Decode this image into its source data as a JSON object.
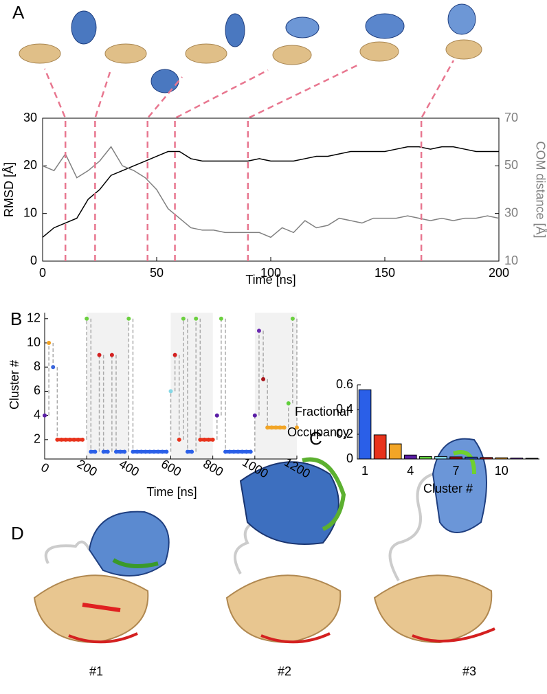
{
  "chart_data": [
    {
      "type": "line",
      "panel_label": "A",
      "xlabel": "Time [ns]",
      "ylabel": "RMSD [Å]",
      "y2label": "COM distance [Å]",
      "xlim": [
        0,
        200
      ],
      "xticks": [
        0,
        50,
        100,
        150,
        200
      ],
      "ylim": [
        0,
        30
      ],
      "yticks": [
        0,
        10,
        20,
        30
      ],
      "y2lim": [
        10,
        70
      ],
      "y2ticks": [
        10,
        30,
        50,
        70
      ],
      "x": [
        0,
        5,
        10,
        15,
        20,
        25,
        30,
        35,
        40,
        45,
        50,
        55,
        60,
        65,
        70,
        75,
        80,
        85,
        90,
        95,
        100,
        105,
        110,
        115,
        120,
        125,
        130,
        135,
        140,
        145,
        150,
        155,
        160,
        165,
        170,
        175,
        180,
        185,
        190,
        195,
        200
      ],
      "series": [
        {
          "color": "#000000",
          "values": [
            5,
            7,
            8,
            9,
            13,
            15,
            18,
            19,
            20,
            21,
            22,
            23,
            23,
            21.5,
            21,
            21,
            21,
            21,
            21,
            21.5,
            21,
            21,
            21,
            21.5,
            22,
            22,
            22.5,
            23,
            23,
            23,
            23,
            23.5,
            24,
            24,
            23.5,
            24,
            24,
            23.5,
            23,
            23,
            23
          ]
        },
        {
          "color": "#808080",
          "axis": "y2",
          "values": [
            50,
            48,
            55,
            45,
            48,
            52,
            58,
            50,
            48,
            45,
            40,
            32,
            28,
            24,
            23,
            23,
            22,
            22,
            22,
            22,
            20,
            24,
            22,
            27,
            24,
            25,
            28,
            27,
            26,
            28,
            28,
            28,
            29,
            28,
            27,
            28,
            27,
            28,
            28,
            29,
            28
          ]
        }
      ],
      "markers": [
        10,
        23,
        46,
        58,
        90,
        166
      ],
      "marker_color": "#e8768f"
    },
    {
      "type": "scatter",
      "panel_label": "B",
      "xlabel": "Time [ns]",
      "ylabel": "Cluster #",
      "xlim": [
        0,
        1200
      ],
      "xticks": [
        0,
        200,
        400,
        600,
        800,
        1000,
        1200
      ],
      "ylim": [
        0.4,
        12.5
      ],
      "yticks": [
        2,
        4,
        6,
        8,
        10,
        12
      ],
      "shaded": [
        [
          200,
          400
        ],
        [
          600,
          800
        ],
        [
          1000,
          1200
        ]
      ],
      "cluster_colors": [
        "#2a5fe8",
        "#e8331c",
        "#f2a526",
        "#5b1ea6",
        "#5fcf3a",
        "#86d8e6",
        "#a8161c",
        "#3a66dd",
        "#d42020",
        "#f0a020",
        "#6a28b0",
        "#6cd040"
      ],
      "x": [
        0,
        20,
        40,
        60,
        80,
        100,
        120,
        140,
        160,
        180,
        200,
        220,
        240,
        260,
        280,
        300,
        320,
        340,
        360,
        380,
        400,
        420,
        440,
        460,
        480,
        500,
        520,
        540,
        560,
        580,
        600,
        620,
        640,
        660,
        680,
        700,
        720,
        740,
        760,
        780,
        800,
        820,
        840,
        860,
        880,
        900,
        920,
        940,
        960,
        980,
        1000,
        1020,
        1040,
        1060,
        1080,
        1100,
        1120,
        1140,
        1160,
        1180,
        1200
      ],
      "values": [
        4,
        10,
        8,
        2,
        2,
        2,
        2,
        2,
        2,
        2,
        12,
        1,
        1,
        9,
        1,
        1,
        9,
        1,
        1,
        1,
        12,
        1,
        1,
        1,
        1,
        1,
        1,
        1,
        1,
        1,
        6,
        9,
        2,
        12,
        1,
        1,
        12,
        2,
        2,
        2,
        2,
        4,
        12,
        1,
        1,
        1,
        1,
        1,
        1,
        1,
        4,
        11,
        7,
        3,
        3,
        3,
        3,
        3,
        5,
        12,
        3
      ]
    },
    {
      "type": "bar",
      "panel_label": "C",
      "xlabel": "Cluster #",
      "ylabel": [
        "Fractional",
        "Occupancy"
      ],
      "categories": [
        "1",
        null,
        null,
        "4",
        null,
        null,
        "7",
        null,
        null,
        "10",
        null,
        null
      ],
      "values": [
        0.56,
        0.195,
        0.122,
        0.032,
        0.02,
        0.02,
        0.017,
        0.015,
        0.012,
        0.01,
        0.008,
        0.006
      ],
      "colors": [
        "#2a5fe8",
        "#e8331c",
        "#f2a526",
        "#5b1ea6",
        "#5fcf3a",
        "#86d8e6",
        "#a8161c",
        "#3a66dd",
        "#d42020",
        "#f0a020",
        "#6a28b0",
        "#333333"
      ],
      "ylim": [
        0,
        0.6
      ],
      "yticks": [
        0,
        0.2,
        0.4,
        0.6
      ]
    }
  ],
  "panel_d": {
    "panel_label": "D",
    "labels": [
      "#1",
      "#2",
      "#3"
    ]
  }
}
